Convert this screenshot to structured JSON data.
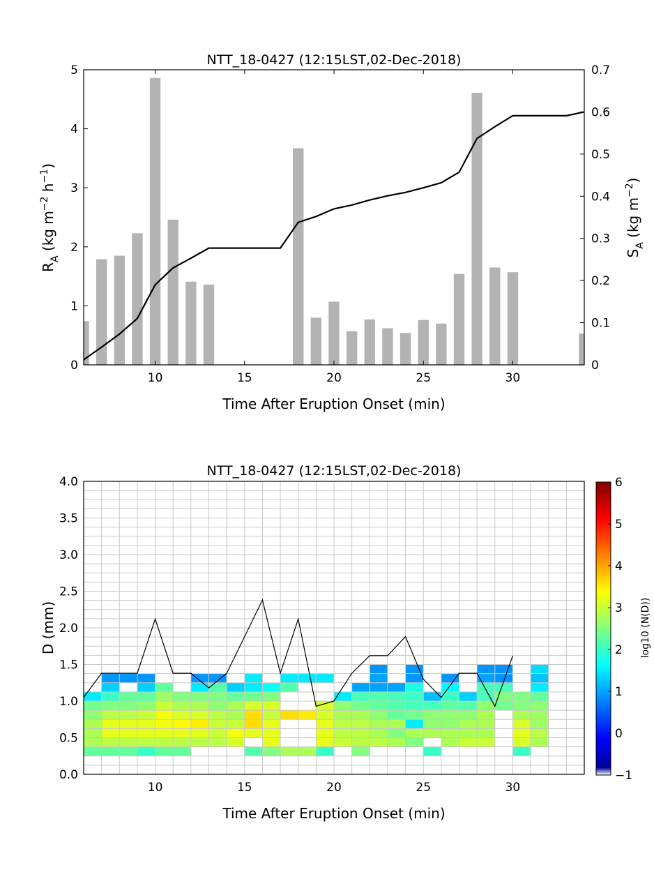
{
  "colors": {
    "bar": "#b3b3b3",
    "line": "#000000",
    "grid": "#c8c8c8"
  },
  "chart_data": [
    {
      "type": "bar",
      "title": "NTT_18-0427 (12:15LST,02-Dec-2018)",
      "xlabel": "Time After Eruption Onset (min)",
      "ylabel_main": "R",
      "ylabel_sub": "A",
      "ylabel_tail": " (kg m",
      "ylabel_sup1": "−2",
      "ylabel_mid": " h",
      "ylabel_sup2": "−1",
      "ylabel_end": ")",
      "y2label_main": "S",
      "y2label_sub": "A",
      "y2label_tail": " (kg m",
      "y2label_sup": "−2",
      "y2label_end": ")",
      "xlim": [
        6,
        34
      ],
      "ylim": [
        0,
        5
      ],
      "y2lim": [
        0,
        0.7
      ],
      "xticks": [
        "10",
        "15",
        "20",
        "25",
        "30"
      ],
      "yticks": [
        "0",
        "1",
        "2",
        "3",
        "4",
        "5"
      ],
      "y2ticks": [
        "0",
        "0.1",
        "0.2",
        "0.3",
        "0.4",
        "0.5",
        "0.6",
        "0.7"
      ],
      "bars": {
        "x": [
          6,
          7,
          8,
          9,
          10,
          11,
          12,
          13,
          18,
          19,
          20,
          21,
          22,
          23,
          24,
          25,
          26,
          27,
          28,
          29,
          30,
          34
        ],
        "values": [
          0.74,
          1.79,
          1.85,
          2.23,
          4.86,
          2.46,
          1.41,
          1.36,
          3.67,
          0.8,
          1.07,
          0.57,
          0.77,
          0.62,
          0.54,
          0.76,
          0.7,
          1.54,
          4.61,
          1.65,
          1.57,
          0.53
        ]
      },
      "line": {
        "name": "S_A (cumulative)",
        "x": [
          6,
          7,
          8,
          9,
          10,
          11,
          12,
          13,
          14,
          15,
          16,
          17,
          18,
          19,
          20,
          21,
          22,
          23,
          24,
          25,
          26,
          27,
          28,
          29,
          30,
          31,
          32,
          33,
          34
        ],
        "values": [
          0.012,
          0.042,
          0.073,
          0.11,
          0.19,
          0.23,
          0.253,
          0.277,
          0.277,
          0.277,
          0.277,
          0.277,
          0.338,
          0.352,
          0.37,
          0.379,
          0.391,
          0.401,
          0.409,
          0.42,
          0.432,
          0.457,
          0.537,
          0.565,
          0.591,
          0.591,
          0.591,
          0.591,
          0.6
        ]
      }
    },
    {
      "type": "heatmap",
      "title": "NTT_18-0427 (12:15LST,02-Dec-2018)",
      "xlabel": "Time After Eruption Onset (min)",
      "ylabel": "D (mm)",
      "colorbar_label": "log10 (N(D))",
      "xlim": [
        6,
        34
      ],
      "ylim": [
        0,
        4
      ],
      "xticks": [
        "10",
        "15",
        "20",
        "25",
        "30"
      ],
      "yticks": [
        "0.0",
        "0.5",
        "1.0",
        "1.5",
        "2.0",
        "2.5",
        "3.0",
        "3.5",
        "4.0"
      ],
      "clim": [
        -1,
        6
      ],
      "cticks": [
        "−1",
        "0",
        "1",
        "2",
        "3",
        "4",
        "5",
        "6"
      ],
      "cells": [
        [
          6,
          0.25,
          2.3
        ],
        [
          6,
          0.375,
          2.8
        ],
        [
          6,
          0.5,
          2.8
        ],
        [
          6,
          0.625,
          2.8
        ],
        [
          6,
          0.75,
          2.6
        ],
        [
          6,
          0.875,
          2.4
        ],
        [
          6,
          1.0,
          1.5
        ],
        [
          7,
          0.25,
          2.3
        ],
        [
          7,
          0.375,
          2.9
        ],
        [
          7,
          0.5,
          3.2
        ],
        [
          7,
          0.625,
          3.2
        ],
        [
          7,
          0.75,
          2.9
        ],
        [
          7,
          0.875,
          2.5
        ],
        [
          7,
          1.0,
          2.0
        ],
        [
          7,
          1.125,
          1.3
        ],
        [
          7,
          1.25,
          0.9
        ],
        [
          8,
          0.25,
          2.3
        ],
        [
          8,
          0.375,
          2.9
        ],
        [
          8,
          0.5,
          3.2
        ],
        [
          8,
          0.625,
          3.2
        ],
        [
          8,
          0.75,
          2.9
        ],
        [
          8,
          0.875,
          2.5
        ],
        [
          8,
          1.0,
          2.3
        ],
        [
          8,
          1.25,
          0.9
        ],
        [
          9,
          0.25,
          2.0
        ],
        [
          9,
          0.375,
          2.9
        ],
        [
          9,
          0.5,
          3.2
        ],
        [
          9,
          0.625,
          3.2
        ],
        [
          9,
          0.75,
          3.0
        ],
        [
          9,
          0.875,
          2.6
        ],
        [
          9,
          1.0,
          2.3
        ],
        [
          9,
          1.125,
          1.3
        ],
        [
          9,
          1.25,
          0.9
        ],
        [
          10,
          0.25,
          2.3
        ],
        [
          10,
          0.375,
          2.9
        ],
        [
          10,
          0.5,
          3.2
        ],
        [
          10,
          0.625,
          3.3
        ],
        [
          10,
          0.75,
          3.3
        ],
        [
          10,
          0.875,
          3.0
        ],
        [
          10,
          1.0,
          2.7
        ],
        [
          10,
          1.125,
          2.3
        ],
        [
          11,
          0.25,
          2.3
        ],
        [
          11,
          0.375,
          2.9
        ],
        [
          11,
          0.5,
          3.2
        ],
        [
          11,
          0.625,
          3.4
        ],
        [
          11,
          0.75,
          3.1
        ],
        [
          11,
          0.875,
          2.8
        ],
        [
          11,
          1.0,
          2.5
        ],
        [
          12,
          0.375,
          2.9
        ],
        [
          12,
          0.5,
          3.2
        ],
        [
          12,
          0.625,
          3.5
        ],
        [
          12,
          0.75,
          3.1
        ],
        [
          12,
          0.875,
          2.8
        ],
        [
          12,
          1.0,
          2.5
        ],
        [
          12,
          1.125,
          1.5
        ],
        [
          12,
          1.25,
          0.9
        ],
        [
          13,
          0.375,
          2.9
        ],
        [
          13,
          0.5,
          3.0
        ],
        [
          13,
          0.625,
          3.0
        ],
        [
          13,
          0.75,
          2.9
        ],
        [
          13,
          0.875,
          2.6
        ],
        [
          13,
          1.0,
          2.5
        ],
        [
          13,
          1.125,
          2.2
        ],
        [
          13,
          1.25,
          0.9
        ],
        [
          14,
          0.375,
          3.1
        ],
        [
          14,
          0.5,
          3.3
        ],
        [
          14,
          0.625,
          3.0
        ],
        [
          14,
          0.75,
          2.8
        ],
        [
          14,
          0.875,
          2.8
        ],
        [
          14,
          1.0,
          2.3
        ],
        [
          14,
          1.125,
          1.3
        ],
        [
          15,
          0.25,
          2.2
        ],
        [
          15,
          0.5,
          3.2
        ],
        [
          15,
          0.625,
          3.6
        ],
        [
          15,
          0.75,
          3.6
        ],
        [
          15,
          0.875,
          3.1
        ],
        [
          15,
          1.0,
          2.4
        ],
        [
          15,
          1.125,
          1.5
        ],
        [
          15,
          1.25,
          1.5
        ],
        [
          16,
          0.25,
          2.5
        ],
        [
          16,
          0.375,
          3.2
        ],
        [
          16,
          0.5,
          3.2
        ],
        [
          16,
          0.625,
          3.2
        ],
        [
          16,
          0.75,
          3.0
        ],
        [
          16,
          0.875,
          3.1
        ],
        [
          16,
          1.0,
          2.5
        ],
        [
          16,
          1.125,
          1.7
        ],
        [
          17,
          0.25,
          2.8
        ],
        [
          17,
          0.75,
          3.6
        ],
        [
          17,
          1.125,
          2.2
        ],
        [
          17,
          1.25,
          1.5
        ],
        [
          18,
          0.25,
          2.8
        ],
        [
          18,
          0.75,
          3.5
        ],
        [
          18,
          1.25,
          1.5
        ],
        [
          19,
          0.25,
          2.0
        ],
        [
          19,
          0.375,
          3.2
        ],
        [
          19,
          0.5,
          3.2
        ],
        [
          19,
          0.625,
          3.2
        ],
        [
          19,
          0.75,
          3.1
        ],
        [
          19,
          0.875,
          3.1
        ],
        [
          19,
          1.25,
          1.5
        ],
        [
          20,
          0.375,
          3.0
        ],
        [
          20,
          0.5,
          2.9
        ],
        [
          20,
          0.625,
          2.9
        ],
        [
          20,
          0.75,
          2.8
        ],
        [
          20,
          0.875,
          2.6
        ],
        [
          20,
          1.0,
          1.5
        ],
        [
          21,
          0.25,
          2.5
        ],
        [
          21,
          0.375,
          2.9
        ],
        [
          21,
          0.5,
          2.9
        ],
        [
          21,
          0.625,
          2.9
        ],
        [
          21,
          0.75,
          2.8
        ],
        [
          21,
          0.875,
          2.4
        ],
        [
          21,
          1.0,
          2.1
        ],
        [
          21,
          1.125,
          1.0
        ],
        [
          22,
          0.375,
          2.9
        ],
        [
          22,
          0.5,
          2.8
        ],
        [
          22,
          0.625,
          2.8
        ],
        [
          22,
          0.75,
          2.6
        ],
        [
          22,
          0.875,
          2.3
        ],
        [
          22,
          1.0,
          2.2
        ],
        [
          22,
          1.125,
          1.0
        ],
        [
          22,
          1.25,
          1.0
        ],
        [
          22,
          1.375,
          0.9
        ],
        [
          23,
          0.375,
          2.8
        ],
        [
          23,
          0.5,
          2.5
        ],
        [
          23,
          0.625,
          2.8
        ],
        [
          23,
          0.75,
          2.3
        ],
        [
          23,
          0.875,
          2.2
        ],
        [
          23,
          1.0,
          2.1
        ],
        [
          23,
          1.125,
          1.0
        ],
        [
          24,
          0.375,
          2.5
        ],
        [
          24,
          0.5,
          2.8
        ],
        [
          24,
          0.625,
          1.5
        ],
        [
          24,
          0.75,
          2.4
        ],
        [
          24,
          0.875,
          2.1
        ],
        [
          24,
          1.0,
          2.0
        ],
        [
          24,
          1.125,
          1.8
        ],
        [
          24,
          1.25,
          0.9
        ],
        [
          24,
          1.375,
          0.9
        ],
        [
          25,
          0.25,
          2.0
        ],
        [
          25,
          0.5,
          2.8
        ],
        [
          25,
          0.625,
          2.6
        ],
        [
          25,
          0.75,
          2.6
        ],
        [
          25,
          0.875,
          2.1
        ],
        [
          25,
          1.0,
          1.2
        ],
        [
          26,
          0.375,
          2.8
        ],
        [
          26,
          0.5,
          2.8
        ],
        [
          26,
          0.625,
          2.6
        ],
        [
          26,
          0.75,
          2.6
        ],
        [
          26,
          0.875,
          2.3
        ],
        [
          26,
          1.0,
          2.0
        ],
        [
          26,
          1.125,
          1.6
        ],
        [
          26,
          1.25,
          0.9
        ],
        [
          27,
          0.375,
          3.0
        ],
        [
          27,
          0.5,
          2.8
        ],
        [
          27,
          0.625,
          2.8
        ],
        [
          27,
          0.75,
          2.6
        ],
        [
          27,
          0.875,
          2.2
        ],
        [
          27,
          1.0,
          1.3
        ],
        [
          28,
          0.375,
          3.0
        ],
        [
          28,
          0.5,
          2.8
        ],
        [
          28,
          0.625,
          2.8
        ],
        [
          28,
          0.75,
          2.8
        ],
        [
          28,
          0.875,
          2.6
        ],
        [
          28,
          1.0,
          2.1
        ],
        [
          28,
          1.125,
          2.1
        ],
        [
          28,
          1.25,
          1.0
        ],
        [
          28,
          1.375,
          0.9
        ],
        [
          29,
          0.875,
          2.4
        ],
        [
          29,
          1.0,
          2.5
        ],
        [
          29,
          1.125,
          2.1
        ],
        [
          29,
          1.25,
          0.9
        ],
        [
          29,
          1.375,
          0.9
        ],
        [
          30,
          0.25,
          2.0
        ],
        [
          30,
          0.375,
          3.1
        ],
        [
          30,
          0.5,
          3.2
        ],
        [
          30,
          0.625,
          3.1
        ],
        [
          30,
          0.75,
          2.8
        ],
        [
          30,
          0.875,
          2.5
        ],
        [
          30,
          1.0,
          2.5
        ],
        [
          31,
          0.375,
          2.8
        ],
        [
          31,
          0.5,
          2.9
        ],
        [
          31,
          0.625,
          2.7
        ],
        [
          31,
          0.75,
          2.7
        ],
        [
          31,
          0.875,
          2.6
        ],
        [
          31,
          1.0,
          2.3
        ],
        [
          31,
          1.125,
          1.5
        ],
        [
          31,
          1.25,
          1.2
        ],
        [
          31,
          1.375,
          1.4
        ]
      ],
      "line": {
        "name": "D max",
        "x": [
          6,
          7,
          8,
          9,
          10,
          11,
          12,
          13,
          14,
          15,
          16,
          17,
          18,
          19,
          20,
          21,
          22,
          23,
          24,
          25,
          26,
          27,
          28,
          29,
          30
        ],
        "values": [
          1.05,
          1.38,
          1.38,
          1.38,
          2.12,
          1.38,
          1.38,
          1.18,
          1.38,
          1.88,
          2.38,
          1.38,
          2.12,
          0.93,
          1.0,
          1.38,
          1.62,
          1.62,
          1.88,
          1.3,
          1.05,
          1.38,
          1.38,
          0.93,
          1.62
        ]
      }
    }
  ]
}
